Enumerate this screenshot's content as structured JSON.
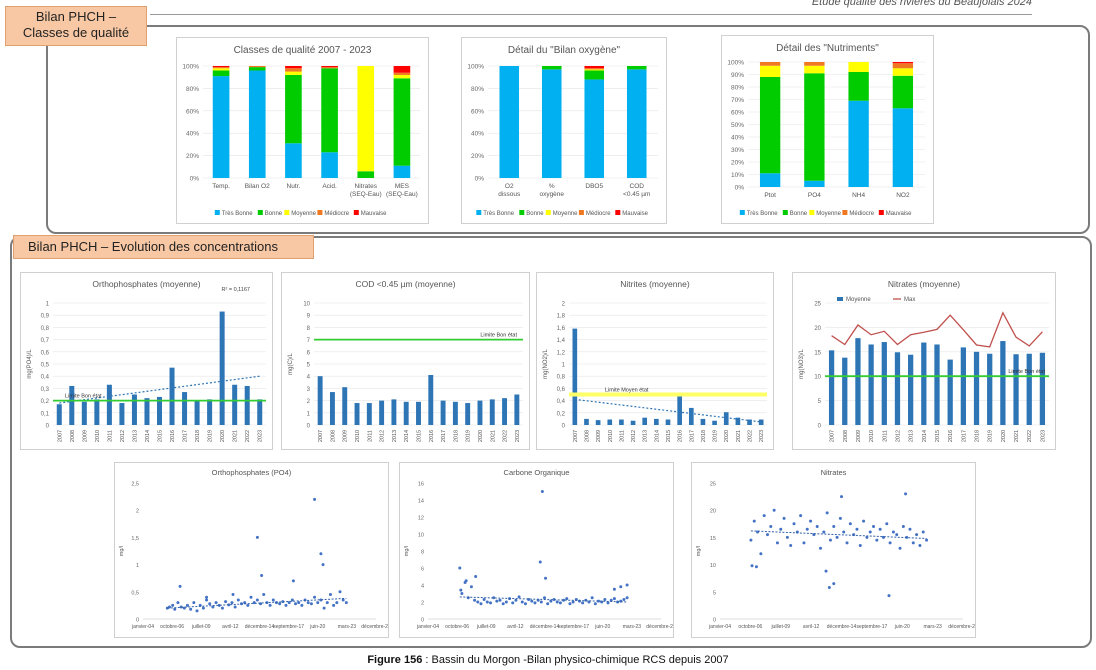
{
  "header": {
    "title": "Etude qualité des rivières du Beaujolais 2024"
  },
  "section1": {
    "tag_line1": "Bilan PHCH –",
    "tag_line2": "Classes de qualité"
  },
  "section2": {
    "tag": "Bilan PHCH – Evolution des concentrations"
  },
  "caption": {
    "label": "Figure 156",
    "text": " : Bassin du Morgon -Bilan physico-chimique RCS depuis 2007"
  },
  "colors": {
    "tres_bonne": "#00b0f0",
    "bonne": "#00cc00",
    "moyenne": "#ffff00",
    "mediocre": "#f07820",
    "mauvaise": "#ff0000",
    "bar": "#2e75b6",
    "green_line": "#33cc33",
    "yellow_line": "#ffff66",
    "max_line": "#c0504d",
    "scatter": "#4472c4"
  },
  "chart_data": [
    {
      "id": "qualite",
      "type": "bar",
      "stacked": true,
      "title": "Classes de qualité 2007 - 2023",
      "categories": [
        "Temp.",
        "Bilan O2",
        "Nutr.",
        "Acid.",
        "Nitrates (SEQ-Eau)",
        "MES (SEQ-Eau)"
      ],
      "series": [
        {
          "name": "Très Bonne",
          "values": [
            91,
            96,
            31,
            23,
            0,
            11
          ]
        },
        {
          "name": "Bonne",
          "values": [
            5,
            3,
            61,
            75,
            6,
            78
          ]
        },
        {
          "name": "Moyenne",
          "values": [
            2,
            0,
            3,
            0,
            94,
            3
          ]
        },
        {
          "name": "Médiocre",
          "values": [
            1,
            1,
            3,
            1,
            0,
            2
          ]
        },
        {
          "name": "Mauvaise",
          "values": [
            1,
            0,
            2,
            1,
            0,
            6
          ]
        }
      ],
      "yticks": [
        "0%",
        "20%",
        "40%",
        "60%",
        "80%",
        "100%"
      ]
    },
    {
      "id": "oxygene",
      "type": "bar",
      "stacked": true,
      "title": "Détail du \"Bilan oxygène\"",
      "categories": [
        "O2 dissous",
        "% oxygène",
        "DBO5",
        "COD <0.45 µm"
      ],
      "series": [
        {
          "name": "Très Bonne",
          "values": [
            100,
            97,
            88,
            97
          ]
        },
        {
          "name": "Bonne",
          "values": [
            0,
            3,
            8,
            3
          ]
        },
        {
          "name": "Moyenne",
          "values": [
            0,
            0,
            1,
            0
          ]
        },
        {
          "name": "Médiocre",
          "values": [
            0,
            0,
            1,
            0
          ]
        },
        {
          "name": "Mauvaise",
          "values": [
            0,
            0,
            2,
            0
          ]
        }
      ],
      "yticks": [
        "0%",
        "20%",
        "40%",
        "60%",
        "80%",
        "100%"
      ]
    },
    {
      "id": "nutriments",
      "type": "bar",
      "stacked": true,
      "title": "Détail des \"Nutriments\"",
      "categories": [
        "Ptot",
        "PO4",
        "NH4",
        "NO2"
      ],
      "series": [
        {
          "name": "Très Bonne",
          "values": [
            11,
            5,
            69,
            63
          ]
        },
        {
          "name": "Bonne",
          "values": [
            77,
            86,
            23,
            26
          ]
        },
        {
          "name": "Moyenne",
          "values": [
            9,
            6,
            8,
            6
          ]
        },
        {
          "name": "Médiocre",
          "values": [
            3,
            3,
            0,
            4
          ]
        },
        {
          "name": "Mauvaise",
          "values": [
            0,
            0,
            0,
            1
          ]
        }
      ],
      "yticks": [
        "0%",
        "10%",
        "20%",
        "30%",
        "40%",
        "50%",
        "60%",
        "70%",
        "80%",
        "90%",
        "100%"
      ]
    },
    {
      "id": "po4_moy",
      "type": "bar",
      "title": "Orthophosphates (moyenne)",
      "ylabel": "mg(PO4)/L",
      "annotation": "R² = 0,1167",
      "categories": [
        "2007",
        "2008",
        "2009",
        "2010",
        "2011",
        "2012",
        "2013",
        "2014",
        "2015",
        "2016",
        "2017",
        "2018",
        "2019",
        "2020",
        "2021",
        "2022",
        "2023"
      ],
      "values": [
        0.17,
        0.32,
        0.19,
        0.21,
        0.33,
        0.18,
        0.25,
        0.22,
        0.23,
        0.47,
        0.27,
        0.2,
        0.21,
        0.93,
        0.33,
        0.32,
        0.21
      ],
      "ylim": [
        0,
        1
      ],
      "yticks": [
        "0",
        "0,1",
        "0,2",
        "0,3",
        "0,4",
        "0,5",
        "0,6",
        "0,7",
        "0,8",
        "0,9",
        "1"
      ],
      "limit": {
        "label": "Limite Bon état",
        "value": 0.2
      },
      "trend": [
        0.18,
        0.4
      ]
    },
    {
      "id": "cod_moy",
      "type": "bar",
      "title": "COD <0.45 µm (moyenne)",
      "ylabel": "mg(C)/L",
      "categories": [
        "2007",
        "2008",
        "2009",
        "2010",
        "2011",
        "2012",
        "2013",
        "2014",
        "2015",
        "2016",
        "2017",
        "2018",
        "2019",
        "2020",
        "2021",
        "2022",
        "2023"
      ],
      "values": [
        4,
        2.7,
        3.1,
        1.8,
        1.8,
        2,
        2.1,
        1.9,
        1.9,
        4.1,
        2,
        1.9,
        1.8,
        2,
        2.1,
        2.2,
        2.5
      ],
      "ylim": [
        0,
        10
      ],
      "yticks": [
        "0",
        "1",
        "2",
        "3",
        "4",
        "5",
        "6",
        "7",
        "8",
        "9",
        "10"
      ],
      "limit": {
        "label": "Limite Bon état",
        "value": 7
      }
    },
    {
      "id": "no2_moy",
      "type": "bar",
      "title": "Nitrites (moyenne)",
      "ylabel": "mg(NO2)/L",
      "categories": [
        "2007",
        "2008",
        "2009",
        "2010",
        "2011",
        "2012",
        "2013",
        "2014",
        "2015",
        "2016",
        "2017",
        "2018",
        "2019",
        "2020",
        "2021",
        "2022",
        "2023"
      ],
      "values": [
        1.58,
        0.1,
        0.08,
        0.09,
        0.09,
        0.07,
        0.12,
        0.1,
        0.09,
        0.52,
        0.28,
        0.1,
        0.07,
        0.21,
        0.12,
        0.09,
        0.09
      ],
      "ylim": [
        0,
        2
      ],
      "yticks": [
        "0",
        "0,2",
        "0,4",
        "0,6",
        "0,8",
        "1",
        "1,2",
        "1,4",
        "1,6",
        "1,8",
        "2"
      ],
      "limit": {
        "label": "Limite Moyen état",
        "value": 0.5
      },
      "trend": [
        0.42,
        0.05
      ]
    },
    {
      "id": "no3_moy",
      "type": "bar+line",
      "title": "Nitrates (moyenne)",
      "ylabel": "mg(NO3)/L",
      "legend": [
        "Moyenne",
        "Max"
      ],
      "categories": [
        "2007",
        "2008",
        "2009",
        "2010",
        "2011",
        "2012",
        "2013",
        "2014",
        "2015",
        "2016",
        "2017",
        "2018",
        "2019",
        "2020",
        "2021",
        "2022",
        "2023"
      ],
      "values": [
        15.3,
        13.8,
        17.8,
        16.5,
        17,
        14.9,
        14.4,
        16.9,
        16.5,
        13.4,
        15.9,
        15,
        14.6,
        17.2,
        14.5,
        14.6,
        14.8
      ],
      "max": [
        18.3,
        16.5,
        20.5,
        18.5,
        19.2,
        16.5,
        18.5,
        19,
        19.6,
        22.5,
        19.5,
        16.4,
        16,
        23,
        18,
        16.2,
        19.1
      ],
      "ylim": [
        0,
        25
      ],
      "yticks": [
        "0",
        "5",
        "10",
        "15",
        "20",
        "25"
      ],
      "limit": {
        "label": "Limite Bon état",
        "value": 10
      }
    },
    {
      "id": "po4_scatter",
      "type": "scatter",
      "title": "Orthophosphates (PO4)",
      "ylabel": "mg/l",
      "xticks": [
        "janvier-04",
        "octobre-06",
        "juillet-09",
        "avril-12",
        "décembre-14",
        "septembre-17",
        "juin-20",
        "mars-23",
        "décembre-25"
      ],
      "ylim": [
        0,
        2.5
      ],
      "yticks": [
        "0",
        "0,5",
        "1",
        "1,5",
        "2",
        "2,5"
      ],
      "x": [
        2.3,
        2.5,
        2.8,
        3.0,
        3.3,
        3.6,
        3.9,
        4.2,
        4.5,
        4.8,
        5.1,
        5.4,
        5.7,
        6.0,
        6.3,
        6.6,
        6.9,
        7.2,
        7.5,
        7.8,
        8.1,
        8.4,
        8.7,
        9.0,
        9.3,
        9.6,
        9.9,
        10.2,
        10.5,
        10.8,
        11.1,
        11.4,
        11.7,
        12.0,
        12.3,
        12.6,
        12.9,
        13.2,
        13.5,
        13.8,
        14.1,
        14.4,
        14.7,
        15.0,
        15.3,
        15.6,
        15.9,
        16.2,
        16.5,
        16.8,
        17.1,
        17.4,
        17.7,
        18.0,
        18.3,
        18.6,
        18.9,
        19.2,
        3.5,
        10.8,
        16.2,
        17.0,
        11.2,
        8.5,
        16.8,
        14.2,
        6.0
      ],
      "y": [
        0.2,
        0.22,
        0.25,
        0.18,
        0.3,
        0.22,
        0.2,
        0.25,
        0.18,
        0.3,
        0.15,
        0.25,
        0.2,
        0.35,
        0.28,
        0.22,
        0.3,
        0.25,
        0.2,
        0.32,
        0.26,
        0.3,
        0.22,
        0.35,
        0.28,
        0.3,
        0.25,
        0.4,
        0.3,
        0.35,
        0.28,
        0.45,
        0.3,
        0.25,
        0.35,
        0.3,
        0.28,
        0.32,
        0.25,
        0.3,
        0.35,
        0.28,
        0.3,
        0.25,
        0.35,
        0.3,
        0.28,
        0.4,
        0.3,
        0.35,
        0.2,
        0.3,
        0.45,
        0.25,
        0.3,
        0.5,
        0.35,
        0.3,
        0.6,
        1.5,
        2.2,
        1.0,
        0.8,
        0.45,
        1.2,
        0.7,
        0.4
      ],
      "trend": [
        0.2,
        0.38
      ]
    },
    {
      "id": "cod_scatter",
      "type": "scatter",
      "title": "Carbone Organique",
      "ylabel": "mg/l",
      "xticks": [
        "janvier-04",
        "octobre-06",
        "juillet-09",
        "avril-12",
        "décembre-14",
        "septembre-17",
        "juin-20",
        "mars-23",
        "décembre-25"
      ],
      "ylim": [
        0,
        16
      ],
      "yticks": [
        "0",
        "2",
        "4",
        "6",
        "8",
        "10",
        "12",
        "14",
        "16"
      ],
      "x": [
        3.0,
        3.2,
        3.5,
        3.8,
        4.1,
        4.4,
        4.7,
        5.0,
        5.3,
        5.6,
        5.9,
        6.2,
        6.5,
        6.8,
        7.1,
        7.4,
        7.7,
        8.0,
        8.3,
        8.6,
        8.9,
        9.2,
        9.5,
        9.8,
        10.1,
        10.4,
        10.7,
        11.0,
        11.3,
        11.6,
        11.9,
        12.2,
        12.5,
        12.8,
        13.1,
        13.4,
        13.7,
        14.0,
        14.3,
        14.6,
        14.9,
        15.2,
        15.5,
        15.8,
        16.1,
        16.4,
        16.7,
        17.0,
        17.3,
        17.6,
        17.9,
        18.2,
        18.5,
        18.8,
        3.1,
        3.6,
        4.5,
        10.6,
        10.8,
        11.1,
        17.6,
        18.2,
        18.8
      ],
      "y": [
        6.0,
        3.0,
        4.3,
        2.5,
        3.8,
        2.2,
        2.0,
        1.8,
        2.3,
        2.0,
        1.9,
        2.5,
        2.1,
        2.2,
        1.8,
        2.0,
        2.4,
        1.9,
        2.2,
        2.6,
        2.0,
        1.8,
        2.3,
        2.1,
        1.9,
        2.2,
        2.0,
        2.5,
        1.8,
        2.1,
        2.3,
        2.0,
        1.9,
        2.2,
        2.4,
        1.8,
        2.0,
        2.3,
        2.1,
        1.9,
        2.2,
        2.0,
        2.5,
        1.8,
        2.1,
        2.0,
        2.3,
        1.9,
        2.2,
        2.4,
        2.0,
        2.1,
        2.3,
        2.5,
        3.4,
        4.5,
        5.0,
        6.7,
        15.0,
        4.8,
        3.5,
        3.8,
        4.0
      ],
      "trend": [
        2.6,
        2.0
      ]
    },
    {
      "id": "no3_scatter",
      "type": "scatter",
      "title": "Nitrates",
      "ylabel": "mg/l",
      "xticks": [
        "janvier-04",
        "octobre-06",
        "juillet-09",
        "avril-12",
        "décembre-14",
        "septembre-17",
        "juin-20",
        "mars-23",
        "décembre-25"
      ],
      "ylim": [
        0,
        25
      ],
      "yticks": [
        "0",
        "5",
        "10",
        "15",
        "20",
        "25"
      ],
      "x": [
        2.8,
        3.1,
        3.4,
        3.7,
        4.0,
        4.3,
        4.6,
        4.9,
        5.2,
        5.5,
        5.8,
        6.1,
        6.4,
        6.7,
        7.0,
        7.3,
        7.6,
        7.9,
        8.2,
        8.5,
        8.8,
        9.1,
        9.4,
        9.7,
        10.0,
        10.3,
        10.6,
        10.9,
        11.2,
        11.5,
        11.8,
        12.1,
        12.4,
        12.7,
        13.0,
        13.3,
        13.6,
        13.9,
        14.2,
        14.5,
        14.8,
        15.1,
        15.4,
        15.7,
        16.0,
        16.3,
        16.6,
        16.9,
        17.2,
        17.5,
        17.8,
        18.1,
        18.4,
        18.7,
        2.9,
        3.3,
        9.6,
        9.9,
        10.3,
        11.0,
        16.8,
        15.3
      ],
      "y": [
        14.5,
        18.0,
        16.0,
        12.0,
        19.0,
        15.5,
        17.0,
        20.0,
        14.0,
        16.5,
        18.5,
        15.0,
        13.5,
        17.5,
        16.0,
        19.0,
        14.0,
        16.5,
        18.0,
        15.5,
        17.0,
        13.0,
        16.0,
        19.5,
        14.5,
        17.0,
        15.0,
        18.5,
        16.0,
        14.0,
        17.5,
        15.5,
        16.5,
        13.5,
        18.0,
        15.0,
        16.0,
        17.0,
        14.5,
        16.5,
        15.0,
        17.5,
        14.0,
        16.0,
        15.5,
        13.0,
        17.0,
        15.0,
        16.5,
        14.0,
        15.5,
        13.5,
        16.0,
        14.5,
        9.8,
        9.6,
        8.8,
        5.8,
        6.5,
        22.5,
        23.0,
        4.3
      ],
      "trend": [
        16.2,
        14.8
      ]
    }
  ]
}
